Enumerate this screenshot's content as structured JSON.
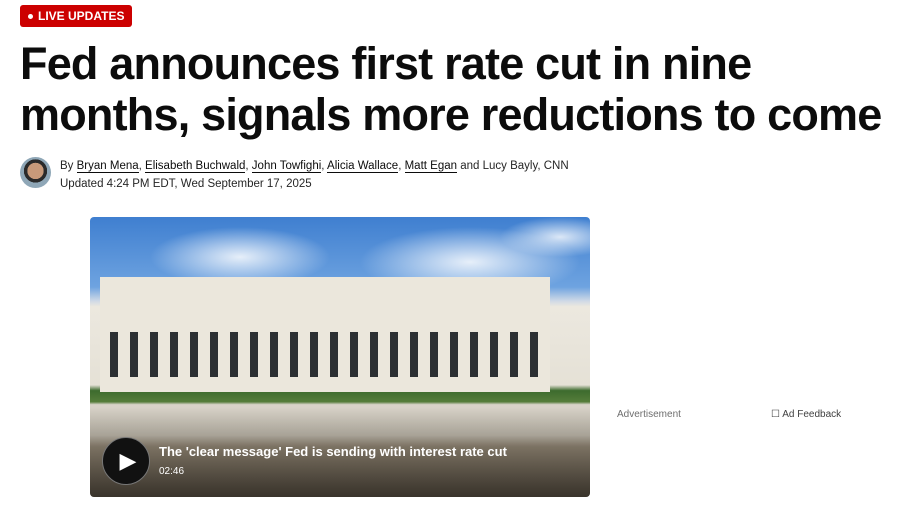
{
  "badge": {
    "label": "LIVE UPDATES",
    "color": "#cc0000"
  },
  "headline": "Fed announces first rate cut in nine months, signals more reductions to come",
  "byline": {
    "prefix": "By",
    "authors": [
      "Bryan Mena",
      "Elisabeth Buchwald",
      "John Towfighi",
      "Alicia Wallace",
      "Matt Egan"
    ],
    "suffix": "and Lucy Bayly, CNN",
    "updated": "Updated 4:24 PM EDT, Wed September 17, 2025"
  },
  "video": {
    "title": "The 'clear message' Fed is sending with interest rate cut",
    "duration": "02:46"
  },
  "ad": {
    "label": "Advertisement",
    "feedback": "Ad Feedback"
  }
}
